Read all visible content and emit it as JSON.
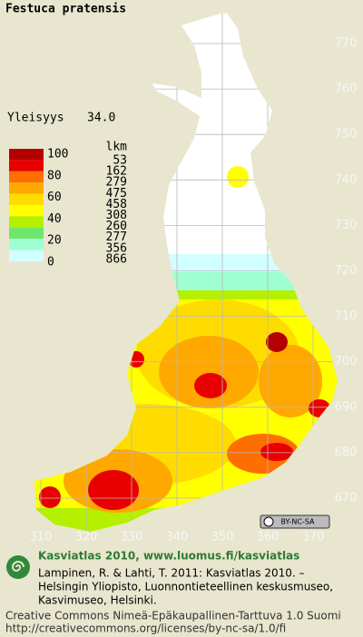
{
  "title": "Festuca pratensis",
  "frequency": {
    "label": "Yleisyys",
    "value": "34.0"
  },
  "legend": {
    "scale_labels": [
      "100",
      "80",
      "60",
      "40",
      "20",
      "0"
    ],
    "count_header": "lkm",
    "counts": [
      "53",
      "162",
      "279",
      "475",
      "458",
      "308",
      "260",
      "277",
      "356",
      "866"
    ],
    "colors": [
      "#b40000",
      "#e80000",
      "#ff6e00",
      "#ffa800",
      "#ffdc00",
      "#ffff00",
      "#b4f000",
      "#6ee66e",
      "#9effd2",
      "#d2ffff",
      "#ffffff"
    ]
  },
  "grid": {
    "y_labels": [
      "770",
      "760",
      "750",
      "740",
      "730",
      "720",
      "710",
      "700",
      "690",
      "680",
      "670"
    ],
    "x_labels": [
      "310",
      "320",
      "330",
      "340",
      "350",
      "360",
      "370"
    ]
  },
  "badge": "BY-NC-SA",
  "footer": {
    "heading": "Kasviatlas 2010, www.luomus.fi/kasviatlas",
    "citation": [
      "Lampinen, R. & Lahti, T. 2011: Kasviatlas 2010. –",
      "Helsingin Yliopisto, Luonnontieteellinen keskusmuseo,",
      "Kasvimuseo, Helsinki."
    ],
    "license": [
      "Creative Commons Nimeä-Epäkaupallinen-Tarttuva 1.0 Suomi",
      "http://creativecommons.org/licenses/by-nc-sa/1.0/fi"
    ]
  }
}
